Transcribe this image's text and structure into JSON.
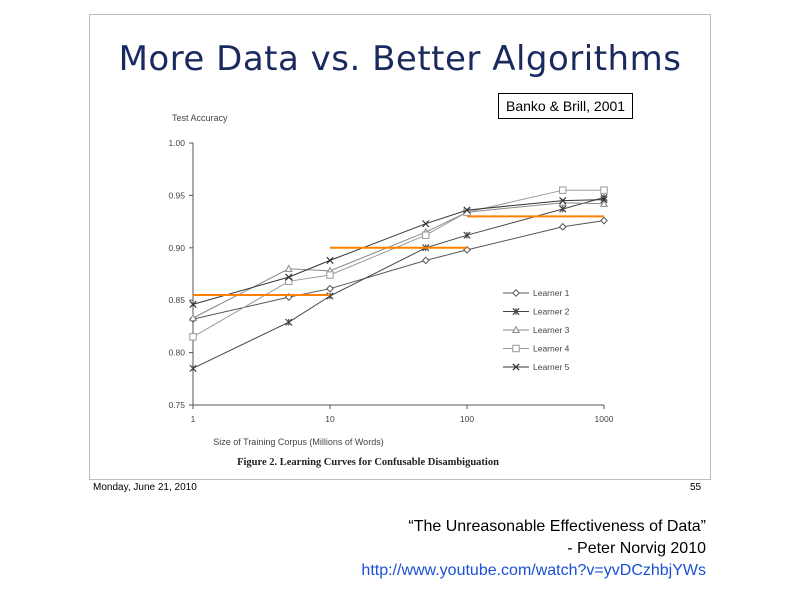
{
  "slide": {
    "title": "More Data vs. Better Algorithms",
    "citation": "Banko & Brill, 2001",
    "footer_date": "Monday, June 21, 2010",
    "page_number": "55"
  },
  "quote": {
    "line1": "“The Unreasonable Effectiveness of Data”",
    "line2": "- Peter Norvig 2010",
    "url": "http://www.youtube.com/watch?v=yvDCzhbjYWs"
  },
  "chart_data": {
    "type": "line",
    "ylabel": "Test Accuracy",
    "xlabel": "Size of Training Corpus (Millions of Words)",
    "caption": "Figure 2. Learning Curves for Confusable Disambiguation",
    "x_scale": "log",
    "x": [
      1,
      5,
      10,
      50,
      100,
      500,
      1000
    ],
    "x_ticks": [
      "1",
      "10",
      "100",
      "1000"
    ],
    "ylim": [
      0.75,
      1.0
    ],
    "y_ticks": [
      "0.75",
      "0.80",
      "0.85",
      "0.90",
      "0.95",
      "1.00"
    ],
    "legend_position": "bottom-right",
    "series": [
      {
        "name": "Learner 1",
        "marker": "diamond",
        "color": "#555555",
        "values": [
          0.832,
          0.853,
          0.861,
          0.888,
          0.898,
          0.92,
          0.926
        ]
      },
      {
        "name": "Learner 2",
        "marker": "asterisk",
        "color": "#444444",
        "values": [
          0.785,
          0.829,
          0.854,
          0.9,
          0.912,
          0.937,
          0.948
        ]
      },
      {
        "name": "Learner 3",
        "marker": "triangle",
        "color": "#888888",
        "values": [
          0.833,
          0.88,
          0.878,
          0.915,
          0.934,
          0.943,
          0.942
        ]
      },
      {
        "name": "Learner 4",
        "marker": "square",
        "color": "#9a9a9a",
        "values": [
          0.815,
          0.868,
          0.874,
          0.912,
          0.934,
          0.955,
          0.955
        ]
      },
      {
        "name": "Learner 5",
        "marker": "x",
        "color": "#333333",
        "values": [
          0.846,
          0.872,
          0.888,
          0.923,
          0.936,
          0.945,
          0.946
        ]
      }
    ],
    "highlight_color": "#ff8000",
    "highlights": [
      {
        "x_from": 1,
        "x_to": 10,
        "y": 0.855
      },
      {
        "x_from": 10,
        "x_to": 100,
        "y": 0.9
      },
      {
        "x_from": 100,
        "x_to": 1000,
        "y": 0.93
      }
    ]
  }
}
